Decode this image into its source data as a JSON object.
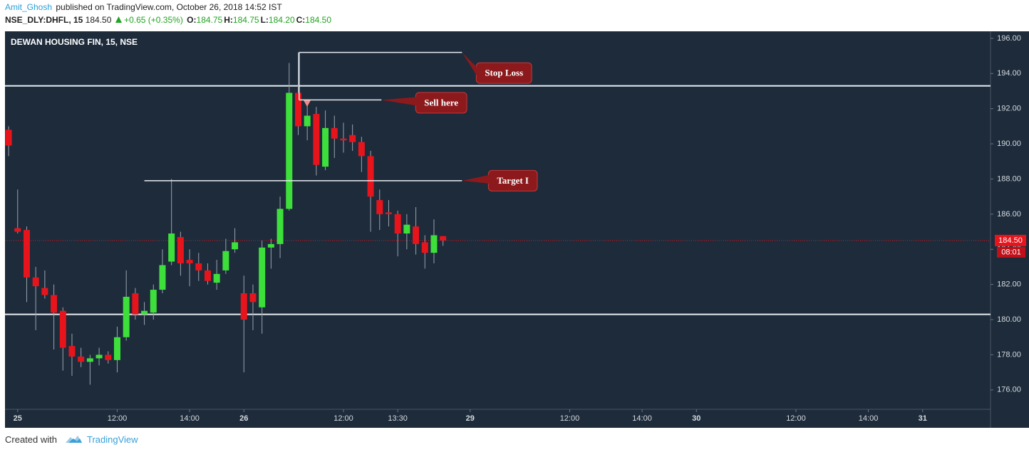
{
  "header": {
    "author": "Amit_Ghosh",
    "published": "published on TradingView.com, October 26, 2018 14:52 IST",
    "symbol": "NSE_DLY:DHFL, 15",
    "last": "184.50",
    "change": "+0.65 (+0.35%)",
    "ohlc": [
      {
        "label": "O:",
        "value": "184.75"
      },
      {
        "label": "H:",
        "value": "184.75"
      },
      {
        "label": "L:",
        "value": "184.20"
      },
      {
        "label": "C:",
        "value": "184.50"
      }
    ]
  },
  "chart_data": {
    "type": "candlestick",
    "title": "DEWAN HOUSING FIN, 15, NSE",
    "x": [
      0,
      1,
      2,
      3,
      4,
      5,
      6,
      7,
      8,
      9,
      10,
      11,
      12,
      13,
      14,
      15,
      16,
      17,
      18,
      19,
      20,
      21,
      22,
      23,
      24,
      25,
      26,
      27,
      28,
      29,
      30,
      31,
      32,
      33,
      34,
      35,
      36,
      37,
      38,
      39,
      40,
      41,
      42,
      43,
      44,
      45,
      46,
      47,
      48
    ],
    "open": [
      190.8,
      185.2,
      185.1,
      182.4,
      181.8,
      181.4,
      180.5,
      178.5,
      177.9,
      177.6,
      177.8,
      178.0,
      177.7,
      179.0,
      181.5,
      180.3,
      180.4,
      181.7,
      183.3,
      184.7,
      183.4,
      183.2,
      182.8,
      182.1,
      182.8,
      184.0,
      181.5,
      181.5,
      180.7,
      184.1,
      184.3,
      186.3,
      192.9,
      191.0,
      191.7,
      188.7,
      190.9,
      190.3,
      190.5,
      190.1,
      189.3,
      186.8,
      186.1,
      186.0,
      184.9,
      185.3,
      184.4,
      183.8,
      184.75
    ],
    "high": [
      191.0,
      187.4,
      185.3,
      183.0,
      182.8,
      182.0,
      180.7,
      179.2,
      178.4,
      178.0,
      178.4,
      178.2,
      179.6,
      182.8,
      181.8,
      181.0,
      182.0,
      184.0,
      188.0,
      185.0,
      184.0,
      183.8,
      183.2,
      183.4,
      184.6,
      185.2,
      182.5,
      182.0,
      184.5,
      184.6,
      187.0,
      194.6,
      195.2,
      192.2,
      192.1,
      191.9,
      191.6,
      191.2,
      191.1,
      190.4,
      189.6,
      187.4,
      186.8,
      186.2,
      186.0,
      186.4,
      184.8,
      185.7,
      184.75
    ],
    "low": [
      189.3,
      184.9,
      181.0,
      179.4,
      181.2,
      178.3,
      177.1,
      176.8,
      177.3,
      176.3,
      177.4,
      177.5,
      177.0,
      178.8,
      180.0,
      179.7,
      180.0,
      181.5,
      183.1,
      182.5,
      181.9,
      182.2,
      182.0,
      181.7,
      182.6,
      183.8,
      177.0,
      179.4,
      179.2,
      182.9,
      183.5,
      186.2,
      190.5,
      190.2,
      188.2,
      188.5,
      189.2,
      189.5,
      189.6,
      188.4,
      185.0,
      185.1,
      185.3,
      183.6,
      184.0,
      183.7,
      182.9,
      183.2,
      184.2
    ],
    "close": [
      189.9,
      185.0,
      182.4,
      181.9,
      181.4,
      180.4,
      178.4,
      177.9,
      177.6,
      177.8,
      178.0,
      177.7,
      179.0,
      181.3,
      180.3,
      180.5,
      181.7,
      183.1,
      184.9,
      183.2,
      183.2,
      182.8,
      182.2,
      182.6,
      183.9,
      184.4,
      180.0,
      181.0,
      184.1,
      184.3,
      186.3,
      192.9,
      191.0,
      191.6,
      188.8,
      190.9,
      190.3,
      190.2,
      190.1,
      189.3,
      187.0,
      186.0,
      186.0,
      184.9,
      185.4,
      184.3,
      183.8,
      184.8,
      184.5
    ],
    "up_color": "#3de03a",
    "down_color": "#e8141c",
    "wick_color": "#9aa3ad",
    "background": "#1d2b3b",
    "xlim": [
      -0.4,
      108.5
    ],
    "xticks": [
      {
        "value": 1,
        "label": "25"
      },
      {
        "value": 12,
        "label": "12:00"
      },
      {
        "value": 20,
        "label": "14:00"
      },
      {
        "value": 26,
        "label": "26"
      },
      {
        "value": 37,
        "label": "12:00"
      },
      {
        "value": 43,
        "label": "13:30"
      },
      {
        "value": 51,
        "label": "29"
      },
      {
        "value": 62,
        "label": "12:00"
      },
      {
        "value": 70,
        "label": "14:00"
      },
      {
        "value": 76,
        "label": "30"
      },
      {
        "value": 87,
        "label": "12:00"
      },
      {
        "value": 95,
        "label": "14:00"
      },
      {
        "value": 101,
        "label": "31"
      }
    ],
    "ylim": [
      174.9,
      196.4
    ],
    "yticks": [
      {
        "value": 176,
        "label": "176.00"
      },
      {
        "value": 178,
        "label": "178.00"
      },
      {
        "value": 180,
        "label": "180.00"
      },
      {
        "value": 182,
        "label": "182.00"
      },
      {
        "value": 184,
        "label": "184.00"
      },
      {
        "value": 186,
        "label": "186.00"
      },
      {
        "value": 188,
        "label": "188.00"
      },
      {
        "value": 190,
        "label": "190.00"
      },
      {
        "value": 192,
        "label": "192.00"
      },
      {
        "value": 194,
        "label": "194.00"
      },
      {
        "value": 196,
        "label": "196.00"
      }
    ],
    "levels": [
      193.3,
      180.3
    ],
    "drawings": [
      {
        "label": "Stop Loss",
        "value": 195.2,
        "x": [
          32.1,
          50.1
        ]
      },
      {
        "label": "Sell here",
        "value": 192.5,
        "x": [
          32.1,
          41.2
        ]
      },
      {
        "label": "Target I",
        "value": 187.9,
        "x": [
          15.0,
          50.1
        ]
      }
    ],
    "price_line": {
      "value": 184.5,
      "label": "184.50"
    },
    "countdown": "08:01"
  },
  "footer": {
    "created": "Created with",
    "brand": "TradingView"
  }
}
